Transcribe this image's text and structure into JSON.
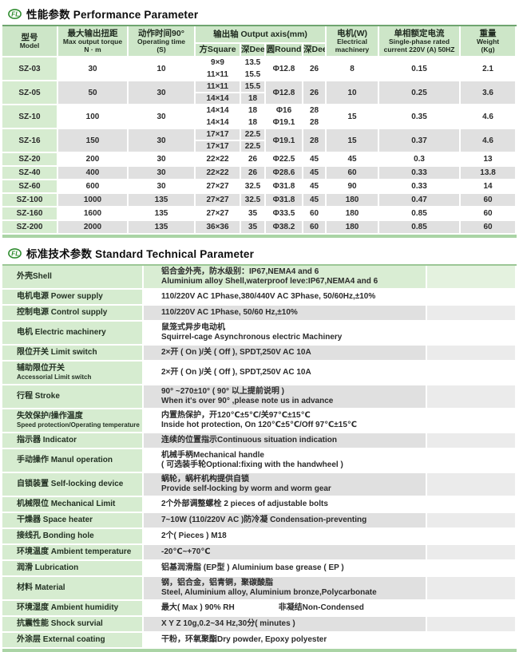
{
  "colors": {
    "accent_green_dark": "#6fa56f",
    "accent_green_band": "#aad4a5",
    "header_green": "#cde6c8",
    "label_green": "#d6ecd0",
    "stripe_gray": "#e0e0e0",
    "logo_green": "#2e8b2e"
  },
  "logo": {
    "text": "FL"
  },
  "sections": {
    "performance": {
      "title": "性能参数 Performance Parameter",
      "header": {
        "model": [
          "型号",
          "Model"
        ],
        "torque": [
          "最大输出扭距",
          "Max output torque",
          "N · m"
        ],
        "time": [
          "动作时间90°",
          "Operating time",
          "(S)"
        ],
        "axis_group": "输出轴 Output axis(mm)",
        "axis_cols": [
          "方Square",
          "深Deep",
          "圆Round",
          "深Deep"
        ],
        "motor": [
          "电机(W)",
          "Electrical",
          "machinery"
        ],
        "current": [
          "单相额定电流",
          "Single-phase rated",
          "current  220V (A) 50HZ"
        ],
        "weight": [
          "重量",
          "Weight",
          "(Kg)"
        ]
      },
      "rows": [
        {
          "model": "SZ-03",
          "torque": "30",
          "time": "10",
          "axes": [
            {
              "sq": "9×9",
              "d1": "13.5"
            },
            {
              "sq": "11×11",
              "d1": "15.5"
            }
          ],
          "round": "Φ12.8",
          "d2": "26",
          "motor": "8",
          "current": "0.15",
          "weight": "2.1"
        },
        {
          "model": "SZ-05",
          "torque": "50",
          "time": "30",
          "axes": [
            {
              "sq": "11×11",
              "d1": "15.5"
            },
            {
              "sq": "14×14",
              "d1": "18"
            }
          ],
          "round": "Φ12.8",
          "d2": "26",
          "motor": "10",
          "current": "0.25",
          "weight": "3.6"
        },
        {
          "model": "SZ-10",
          "torque": "100",
          "time": "30",
          "axes": [
            {
              "sq": "14×14",
              "d1": "18",
              "round": "Φ16",
              "d2": "28"
            },
            {
              "sq": "14×14",
              "d1": "18",
              "round": "Φ19.1",
              "d2": "28"
            }
          ],
          "motor": "15",
          "current": "0.35",
          "weight": "4.6"
        },
        {
          "model": "SZ-16",
          "torque": "150",
          "time": "30",
          "axes": [
            {
              "sq": "17×17",
              "d1": "22.5"
            },
            {
              "sq": "17×17",
              "d1": "22.5"
            }
          ],
          "round": "Φ19.1",
          "d2": "28",
          "motor": "15",
          "current": "0.37",
          "weight": "4.6"
        },
        {
          "model": "SZ-20",
          "torque": "200",
          "time": "30",
          "axes": [
            {
              "sq": "22×22",
              "d1": "26"
            }
          ],
          "round": "Φ22.5",
          "d2": "45",
          "motor": "45",
          "current": "0.3",
          "weight": "13"
        },
        {
          "model": "SZ-40",
          "torque": "400",
          "time": "30",
          "axes": [
            {
              "sq": "22×22",
              "d1": "26"
            }
          ],
          "round": "Φ28.6",
          "d2": "45",
          "motor": "60",
          "current": "0.33",
          "weight": "13.8"
        },
        {
          "model": "SZ-60",
          "torque": "600",
          "time": "30",
          "axes": [
            {
              "sq": "27×27",
              "d1": "32.5"
            }
          ],
          "round": "Φ31.8",
          "d2": "45",
          "motor": "90",
          "current": "0.33",
          "weight": "14"
        },
        {
          "model": "SZ-100",
          "torque": "1000",
          "time": "135",
          "axes": [
            {
              "sq": "27×27",
              "d1": "32.5"
            }
          ],
          "round": "Φ31.8",
          "d2": "45",
          "motor": "180",
          "current": "0.47",
          "weight": "60"
        },
        {
          "model": "SZ-160",
          "torque": "1600",
          "time": "135",
          "axes": [
            {
              "sq": "27×27",
              "d1": "35"
            }
          ],
          "round": "Φ33.5",
          "d2": "60",
          "motor": "180",
          "current": "0.85",
          "weight": "60"
        },
        {
          "model": "SZ-200",
          "torque": "2000",
          "time": "135",
          "axes": [
            {
              "sq": "36×36",
              "d1": "35"
            }
          ],
          "round": "Φ38.2",
          "d2": "60",
          "motor": "180",
          "current": "0.85",
          "weight": "60"
        }
      ]
    },
    "standard": {
      "title": "标准技术参数  Standard Technical Parameter",
      "rows": [
        {
          "label": [
            "外壳Shell"
          ],
          "value": [
            "铝合金外壳，防水级别：IP67,NEMA4 and 6",
            "Aluminium alloy Shell,waterproof leve:IP67,NEMA4 and 6"
          ],
          "tall": true
        },
        {
          "label": [
            "电机电源 Power supply"
          ],
          "value": [
            "110/220V AC 1Phase,380/440V AC 3Phase, 50/60Hz,±10%"
          ],
          "tall": false
        },
        {
          "label": [
            "控制电源 Control supply"
          ],
          "value": [
            "110/220V AC 1Phase, 50/60 Hz,±10%"
          ],
          "tall": false
        },
        {
          "label": [
            "电机 Electric machinery"
          ],
          "value": [
            "鼠笼式异步电动机",
            "Squirrel-cage Asynchronous electric Machinery"
          ],
          "tall": true
        },
        {
          "label": [
            "限位开关 Limit switch"
          ],
          "value": [
            "2×开 ( On )/关  ( Off ), SPDT,250V AC 10A"
          ],
          "tall": false
        },
        {
          "label": [
            "辅助限位开关",
            "Accessorial Limit switch"
          ],
          "value": [
            "2×开 ( On )/关  ( Off ), SPDT,250V AC 10A"
          ],
          "tall": true
        },
        {
          "label": [
            "行程 Stroke"
          ],
          "value": [
            "90° ~270±10° ( 90° 以上提前说明 )",
            "When it's over 90° ,please note us in advance"
          ],
          "tall": true
        },
        {
          "label": [
            "失效保护/操作温度",
            "Speed protection/Operating temperature"
          ],
          "value": [
            "内置热保护，开120℃±5℃/关97℃±15℃",
            "Inside hot protection, On 120℃±5℃/Off 97℃±15℃"
          ],
          "tall": true
        },
        {
          "label": [
            "指示器 Indicator"
          ],
          "value": [
            "连续的位置指示Continuous situation indication"
          ],
          "tall": false
        },
        {
          "label": [
            "手动操作 Manul operation"
          ],
          "value": [
            "机械手柄Mechanical handle",
            "( 可选装手轮Optional:fixing with the handwheel )"
          ],
          "tall": true
        },
        {
          "label": [
            "自锁装置 Self-locking device"
          ],
          "value": [
            "蜗轮，蜗杆机构提供自锁",
            "Provide self-locking by worm and worm gear"
          ],
          "tall": true
        },
        {
          "label": [
            "机械限位 Mechanical Limit"
          ],
          "value": [
            "2个外部调整螺栓 2 pieces of adjustable bolts"
          ],
          "tall": false
        },
        {
          "label": [
            "干燥器 Space heater"
          ],
          "value": [
            "7~10W (110/220V AC )防冷凝 Condensation-preventing"
          ],
          "tall": false
        },
        {
          "label": [
            "接线孔 Bonding hole"
          ],
          "value": [
            "2个( Pieces ) M18"
          ],
          "tall": false
        },
        {
          "label": [
            "环境温度 Ambient temperature"
          ],
          "value": [
            "-20℃~+70℃"
          ],
          "tall": false
        },
        {
          "label": [
            "润滑 Lubrication"
          ],
          "value": [
            "铝基润滑脂 (EP型 ) Aluminium base grease ( EP )"
          ],
          "tall": false
        },
        {
          "label": [
            "材料 Material"
          ],
          "value": [
            "钢，铝合金，铝青铜，聚碳酸脂",
            "Steel, Aluminium alloy, Aluminium bronze,Polycarbonate"
          ],
          "tall": true
        },
        {
          "label": [
            "环境湿度 Ambient humidity"
          ],
          "value": [
            "最大( Max ) 90% RH\t非凝结Non-Condensed"
          ],
          "tall": false
        },
        {
          "label": [
            "抗震性能 Shock survial"
          ],
          "value": [
            "X Y Z 10g,0.2~34 Hz,30分( minutes )"
          ],
          "tall": false
        },
        {
          "label": [
            "外涂层 External coating"
          ],
          "value": [
            "干粉，环氧聚酯Dry powder, Epoxy polyester"
          ],
          "tall": false
        }
      ]
    }
  }
}
